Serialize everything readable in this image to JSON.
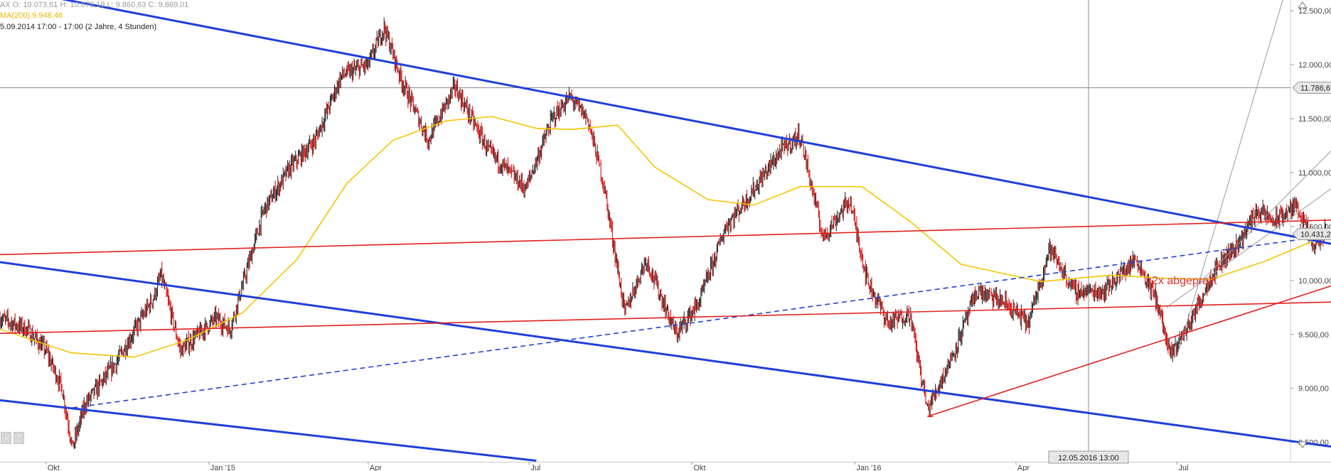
{
  "header": {
    "ohlc": "AX   O: 10.073,61  H: 10.078,19  L: 9.860,63  C: 9.869,01",
    "ma": "MA(200)  9.948,46",
    "range": "5.09.2014 17:00 - 17:00 (2 Jahre, 4 Stunden)"
  },
  "crosshair": {
    "date_label": "12.05.2016 13:00",
    "price_label": "11.786,6"
  },
  "last_price_label": "10.431,2",
  "annotation": "2x abgeprallt",
  "colors": {
    "channel_blue": "#1f3fd8",
    "support_red": "#e02020",
    "ma_yellow": "#f5c400",
    "candle_up": "#1a1a1a",
    "candle_down": "#d40000",
    "arrow_red": "#e03030",
    "crosshair": "#8c8c8c",
    "fan_gray": "#9a9a9a"
  },
  "icons": {
    "scroll_down": "triangle-down-icon",
    "scroll_up": "triangle-up-icon",
    "zoom_buttons": "zoom-icon"
  },
  "chart_data": {
    "type": "line",
    "title": "",
    "xlabel": "",
    "ylabel": "",
    "x_ticks": [
      "Okt",
      "Jan '15",
      "Apr",
      "Jul",
      "Okt",
      "Jan '16",
      "Apr",
      "Jul"
    ],
    "y_ticks": [
      "8.500,00",
      "9.000,00",
      "9.500,00",
      "10.000,00",
      "10.500,00",
      "11.000,00",
      "11.500,00",
      "12.000,00",
      "12.500,00"
    ],
    "ylim": [
      8320,
      12600
    ],
    "xlim": [
      "2014-09-05",
      "2016-09-26"
    ],
    "grid": false,
    "series": [
      {
        "name": "",
        "style": "candlestick",
        "approx_close": [
          [
            "2014-09-05",
            9650
          ],
          [
            "2014-09-20",
            9550
          ],
          [
            "2014-10-01",
            9350
          ],
          [
            "2014-10-10",
            9000
          ],
          [
            "2014-10-16",
            8450
          ],
          [
            "2014-10-23",
            8850
          ],
          [
            "2014-11-10",
            9250
          ],
          [
            "2014-12-01",
            9850
          ],
          [
            "2014-12-05",
            10050
          ],
          [
            "2014-12-16",
            9350
          ],
          [
            "2015-01-05",
            9650
          ],
          [
            "2015-01-13",
            9550
          ],
          [
            "2015-02-01",
            10650
          ],
          [
            "2015-02-16",
            11050
          ],
          [
            "2015-03-02",
            11300
          ],
          [
            "2015-03-17",
            11900
          ],
          [
            "2015-04-01",
            12000
          ],
          [
            "2015-04-10",
            12350
          ],
          [
            "2015-04-20",
            11850
          ],
          [
            "2015-05-05",
            11300
          ],
          [
            "2015-05-20",
            11800
          ],
          [
            "2015-06-08",
            11200
          ],
          [
            "2015-06-29",
            10850
          ],
          [
            "2015-07-14",
            11500
          ],
          [
            "2015-07-24",
            11700
          ],
          [
            "2015-08-03",
            11500
          ],
          [
            "2015-08-12",
            10900
          ],
          [
            "2015-08-24",
            9700
          ],
          [
            "2015-09-05",
            10200
          ],
          [
            "2015-09-22",
            9500
          ],
          [
            "2015-10-05",
            9800
          ],
          [
            "2015-10-20",
            10500
          ],
          [
            "2015-11-03",
            10800
          ],
          [
            "2015-11-20",
            11200
          ],
          [
            "2015-12-01",
            11350
          ],
          [
            "2015-12-14",
            10400
          ],
          [
            "2015-12-29",
            10750
          ],
          [
            "2016-01-08",
            10000
          ],
          [
            "2016-01-20",
            9600
          ],
          [
            "2016-02-01",
            9700
          ],
          [
            "2016-02-11",
            8800
          ],
          [
            "2016-02-25",
            9300
          ],
          [
            "2016-03-10",
            9900
          ],
          [
            "2016-03-25",
            9800
          ],
          [
            "2016-04-08",
            9600
          ],
          [
            "2016-04-20",
            10300
          ],
          [
            "2016-05-04",
            9900
          ],
          [
            "2016-05-20",
            9900
          ],
          [
            "2016-06-08",
            10200
          ],
          [
            "2016-06-20",
            9800
          ],
          [
            "2016-06-27",
            9300
          ],
          [
            "2016-07-08",
            9600
          ],
          [
            "2016-07-22",
            10100
          ],
          [
            "2016-08-05",
            10350
          ],
          [
            "2016-08-15",
            10650
          ],
          [
            "2016-08-25",
            10550
          ],
          [
            "2016-09-07",
            10700
          ],
          [
            "2016-09-16",
            10300
          ],
          [
            "2016-09-23",
            10450
          ]
        ]
      },
      {
        "name": "MA(200)",
        "style": "line",
        "values": [
          [
            "2014-09-05",
            9550
          ],
          [
            "2014-10-15",
            9330
          ],
          [
            "2014-11-20",
            9290
          ],
          [
            "2014-12-20",
            9450
          ],
          [
            "2015-01-20",
            9700
          ],
          [
            "2015-02-20",
            10200
          ],
          [
            "2015-03-20",
            10900
          ],
          [
            "2015-04-15",
            11300
          ],
          [
            "2015-05-15",
            11480
          ],
          [
            "2015-06-10",
            11520
          ],
          [
            "2015-07-05",
            11410
          ],
          [
            "2015-07-25",
            11400
          ],
          [
            "2015-08-20",
            11440
          ],
          [
            "2015-09-10",
            11050
          ],
          [
            "2015-10-10",
            10750
          ],
          [
            "2015-11-05",
            10700
          ],
          [
            "2015-12-01",
            10870
          ],
          [
            "2016-01-05",
            10870
          ],
          [
            "2016-02-01",
            10550
          ],
          [
            "2016-03-01",
            10150
          ],
          [
            "2016-04-15",
            9990
          ],
          [
            "2016-05-25",
            10050
          ],
          [
            "2016-06-25",
            10020
          ],
          [
            "2016-07-20",
            10010
          ],
          [
            "2016-08-20",
            10180
          ],
          [
            "2016-09-25",
            10430
          ]
        ]
      },
      {
        "name": "",
        "style": "trendline-blue-upper",
        "values": [
          [
            "2014-09-05",
            12720
          ],
          [
            "2016-09-26",
            10340
          ]
        ]
      },
      {
        "name": "",
        "style": "trendline-blue-lower",
        "values": [
          [
            "2014-09-05",
            10170
          ],
          [
            "2016-09-26",
            8460
          ]
        ]
      },
      {
        "name": "",
        "style": "trendline-blue-bottom",
        "values": [
          [
            "2014-09-05",
            8890
          ],
          [
            "2015-07-05",
            8330
          ]
        ]
      },
      {
        "name": "",
        "style": "trendline-blue-dashed",
        "values": [
          [
            "2014-10-16",
            8820
          ],
          [
            "2016-09-26",
            10420
          ]
        ]
      },
      {
        "name": "",
        "style": "trendline-red-upper",
        "values": [
          [
            "2014-09-05",
            10240
          ],
          [
            "2016-09-26",
            10560
          ]
        ]
      },
      {
        "name": "",
        "style": "trendline-red-middle",
        "values": [
          [
            "2014-09-05",
            9510
          ],
          [
            "2016-09-26",
            9800
          ]
        ]
      },
      {
        "name": "",
        "style": "trendline-red-rising",
        "values": [
          [
            "2016-02-11",
            8740
          ],
          [
            "2016-09-26",
            9950
          ]
        ]
      }
    ]
  }
}
